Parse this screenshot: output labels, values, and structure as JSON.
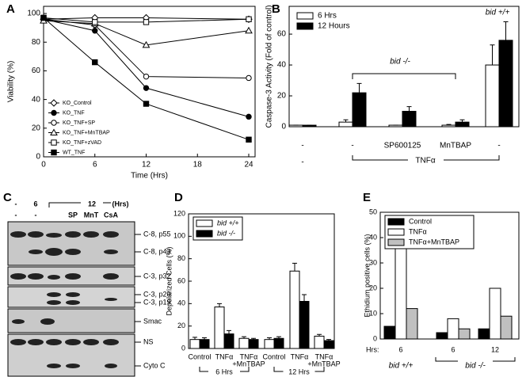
{
  "chart_data": [
    {
      "panel": "A",
      "type": "line",
      "x_label": "Time (Hrs)",
      "y_label": "Viability (%)",
      "x": [
        0,
        6,
        12,
        24
      ],
      "xlim": [
        0,
        24
      ],
      "xticks": [
        0,
        6,
        12,
        18,
        24
      ],
      "ylim": [
        0,
        105
      ],
      "yticks": [
        0,
        20,
        40,
        60,
        80,
        100
      ],
      "legend": "lower left",
      "series": [
        {
          "name": "KO_Control",
          "marker": "diamond-open",
          "color": "#000000",
          "values": [
            96,
            97,
            97,
            96
          ]
        },
        {
          "name": "KO_TNF",
          "marker": "circle-filled",
          "color": "#000000",
          "values": [
            96,
            88,
            48,
            28
          ]
        },
        {
          "name": "KO_TNF+SP",
          "marker": "circle-open",
          "color": "#000000",
          "values": [
            96,
            92,
            56,
            55
          ]
        },
        {
          "name": "KO_TNF+MnTBAP",
          "marker": "triangle-open",
          "color": "#000000",
          "values": [
            95,
            93,
            78,
            88
          ]
        },
        {
          "name": "KO_TNF+zVAD",
          "marker": "square-open",
          "color": "#000000",
          "values": [
            97,
            94,
            94,
            96
          ]
        },
        {
          "name": "WT_TNF",
          "marker": "square-filled",
          "color": "#000000",
          "values": [
            97,
            66,
            37,
            12
          ]
        }
      ]
    },
    {
      "panel": "B",
      "type": "bar",
      "y_label": "Caspase-3 Activity (Fold of control)",
      "categories": [
        "-",
        "-",
        "SP600125",
        "MnTBAP",
        "-"
      ],
      "row2_label": "-",
      "group_label": "TNFα",
      "annotations": [
        "bid -/-",
        "bid +/+"
      ],
      "ylim": [
        0,
        78
      ],
      "yticks": [
        0,
        20,
        40,
        60
      ],
      "legend": "upper left",
      "series": [
        {
          "name": "6 Hrs",
          "color": "#ffffff",
          "values": [
            1,
            3,
            1,
            1,
            40
          ],
          "errors": [
            0,
            1.5,
            0,
            0.5,
            13
          ]
        },
        {
          "name": "12 Hours",
          "color": "#000000",
          "values": [
            1,
            22,
            10,
            3,
            56
          ],
          "errors": [
            0,
            6,
            3,
            1.5,
            12
          ]
        }
      ]
    },
    {
      "panel": "D",
      "type": "bar",
      "y_label": "Depolarized Cells (%)",
      "categories": [
        "Control",
        "TNFα",
        [
          "TNFα",
          "+MnTBAP"
        ],
        "Control",
        "TNFα",
        [
          "TNFα",
          "+MnTBAP"
        ]
      ],
      "group_labels": [
        "6 Hrs",
        "12 Hrs"
      ],
      "ylim": [
        0,
        120
      ],
      "yticks": [
        0,
        20,
        40,
        60,
        80,
        100,
        120
      ],
      "legend": "upper left",
      "series": [
        {
          "name": "bid +/+",
          "color": "#ffffff",
          "values": [
            8,
            37,
            9,
            8,
            69,
            11
          ],
          "errors": [
            2,
            3,
            1.5,
            1.5,
            7,
            1.5
          ]
        },
        {
          "name": "bid -/-",
          "color": "#000000",
          "values": [
            8,
            13,
            8,
            9,
            42,
            7
          ],
          "errors": [
            1.5,
            3,
            1,
            1.5,
            6,
            1
          ]
        }
      ]
    },
    {
      "panel": "E",
      "type": "bar",
      "y_label": "Ethidium positive cells (%)",
      "x_prefix": "Hrs:",
      "categories": [
        "6",
        "6",
        "12"
      ],
      "group_labels": [
        "bid +/+",
        "bid -/-"
      ],
      "ylim": [
        0,
        50
      ],
      "yticks": [
        0,
        10,
        20,
        30,
        40,
        50
      ],
      "legend": "upper left",
      "series": [
        {
          "name": "Control",
          "color": "#000000",
          "values": [
            5,
            2.5,
            4
          ]
        },
        {
          "name": "TNFα",
          "color": "#ffffff",
          "values": [
            45,
            8,
            20
          ]
        },
        {
          "name": "TNFα+MnTBAP",
          "color": "#c0c0c0",
          "values": [
            12,
            4,
            9
          ]
        }
      ]
    }
  ],
  "blot": {
    "panel": "C",
    "header_row1": [
      "-",
      "6",
      "12",
      "(Hrs)"
    ],
    "header_row2": [
      "-",
      "-",
      "SP",
      "MnT",
      "CsA"
    ],
    "bands": [
      "C-8, p55",
      "C-8, p43",
      "C-3, p32",
      "C-3, p20",
      "C-3, p19",
      "Smac",
      "NS",
      "Cyto C"
    ]
  }
}
